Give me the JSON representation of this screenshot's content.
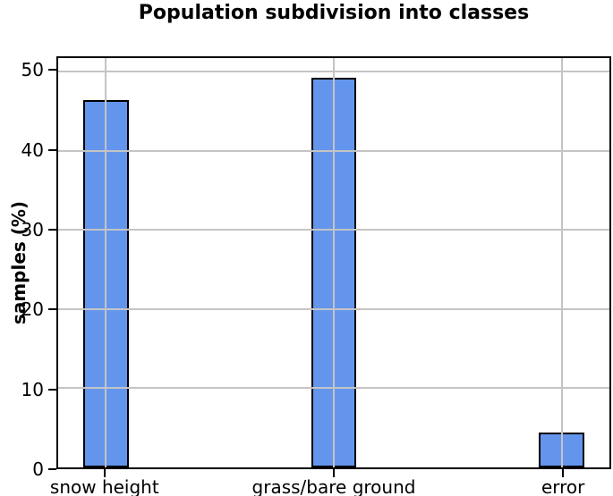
{
  "chart_data": {
    "type": "bar",
    "title": "Population subdivision into classes",
    "xlabel": "",
    "ylabel": "samples (%)",
    "categories": [
      "snow height",
      "grass/bare ground",
      "error"
    ],
    "values": [
      46.4,
      49.2,
      4.4
    ],
    "x": [
      0,
      1,
      2
    ],
    "xlim": [
      -0.21,
      2.21
    ],
    "ylim": [
      0,
      51.7
    ],
    "yticks": [
      0,
      10,
      20,
      30,
      40,
      50
    ],
    "bar_width_units": 0.2,
    "grid": true,
    "grid_above_bars": true,
    "legend": null,
    "colors": {
      "bar_fill": "#6495ED",
      "bar_edge": "#000000",
      "grid": "#c4c4c4",
      "spine": "#000000",
      "background": "#ffffff",
      "text": "#000000"
    }
  }
}
